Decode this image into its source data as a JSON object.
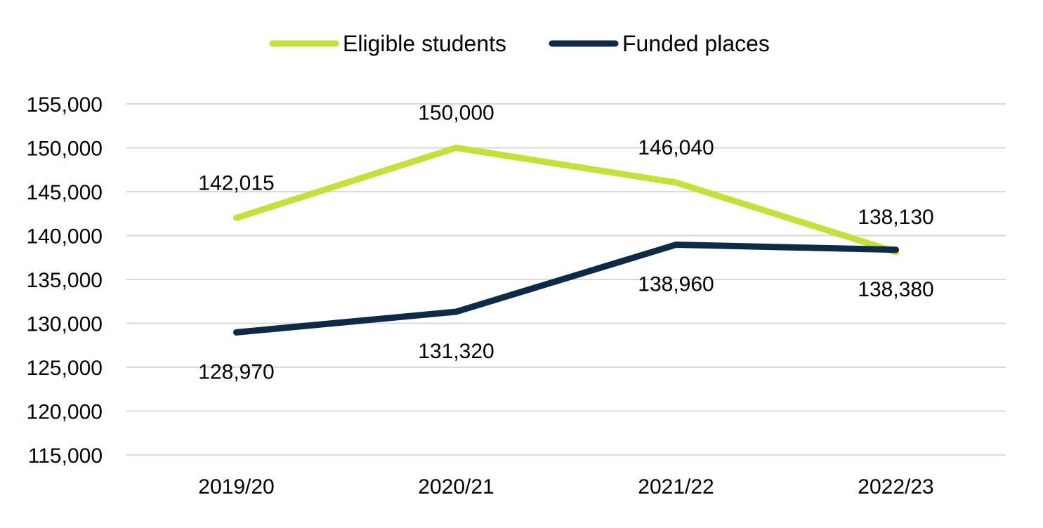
{
  "chart_data": {
    "type": "line",
    "title": "",
    "xlabel": "",
    "ylabel": "",
    "categories": [
      "2019/20",
      "2020/21",
      "2021/22",
      "2022/23"
    ],
    "ylim": [
      115000,
      155000
    ],
    "y_ticks": [
      115000,
      120000,
      125000,
      130000,
      135000,
      140000,
      145000,
      150000,
      155000
    ],
    "y_tick_labels": [
      "115,000",
      "120,000",
      "125,000",
      "130,000",
      "135,000",
      "140,000",
      "145,000",
      "150,000",
      "155,000"
    ],
    "grid": true,
    "legend_position": "top-center",
    "series": [
      {
        "name": "Eligible students",
        "color": "#c5e03a",
        "values": [
          142015,
          150000,
          146040,
          138130
        ],
        "labels": [
          "142,015",
          "150,000",
          "146,040",
          "138,130"
        ],
        "label_positions": [
          "above",
          "above",
          "above",
          "above"
        ]
      },
      {
        "name": "Funded places",
        "color": "#0f2a47",
        "values": [
          128970,
          131320,
          138960,
          138380
        ],
        "labels": [
          "128,970",
          "131,320",
          "138,960",
          "138,380"
        ],
        "label_positions": [
          "below",
          "below",
          "below",
          "below"
        ]
      }
    ]
  }
}
